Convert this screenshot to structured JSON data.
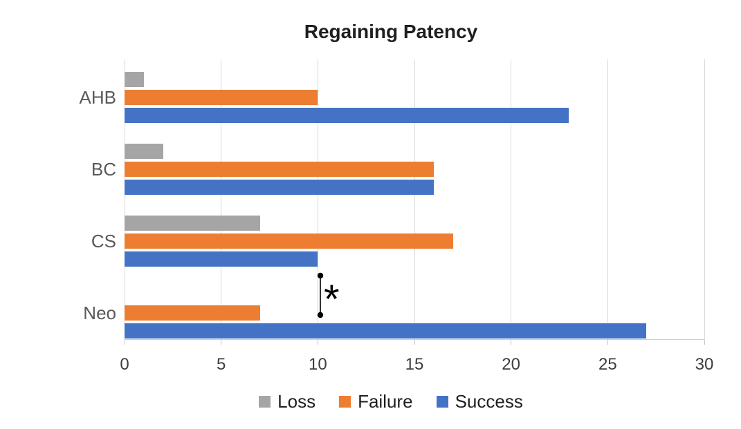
{
  "chart_data": {
    "type": "bar",
    "orientation": "horizontal",
    "title": "Regaining Patency",
    "categories": [
      "AHB",
      "BC",
      "CS",
      "Neo"
    ],
    "series": [
      {
        "name": "Loss",
        "color": "#A5A5A5",
        "values": [
          1,
          2,
          7,
          0
        ]
      },
      {
        "name": "Failure",
        "color": "#ED7D31",
        "values": [
          10,
          16,
          17,
          7
        ]
      },
      {
        "name": "Success",
        "color": "#4472C4",
        "values": [
          23,
          16,
          10,
          27
        ]
      }
    ],
    "xlim": [
      0,
      30
    ],
    "xticks": [
      0,
      5,
      10,
      15,
      20,
      25,
      30
    ],
    "grid": true,
    "gridline_color": "#D9D9D9",
    "axis_label_color": "#595959",
    "legend_position": "bottom",
    "annotation": {
      "symbol": "*",
      "x_value": 10.1,
      "spans_rows": [
        "CS",
        "Neo"
      ]
    }
  }
}
